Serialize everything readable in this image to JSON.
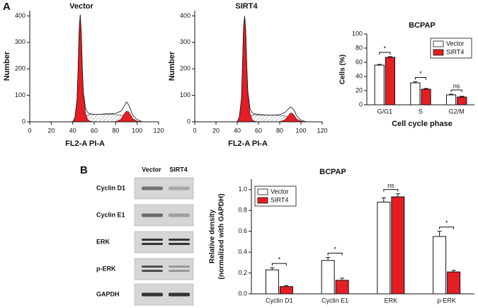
{
  "panels": [
    "A",
    "B"
  ],
  "chart_data": [
    {
      "type": "area",
      "title": "Vector",
      "x_label": "FL2-A PI-A",
      "y_label": "Number",
      "color": "#e31e24",
      "x": [
        40,
        42,
        44,
        45,
        46,
        47,
        48,
        49,
        50,
        52,
        54,
        56,
        60,
        65,
        70,
        75,
        80,
        85,
        88,
        90,
        92,
        94,
        96,
        100,
        105
      ],
      "values": [
        0,
        15,
        80,
        200,
        350,
        405,
        340,
        200,
        110,
        50,
        35,
        30,
        28,
        28,
        30,
        30,
        32,
        40,
        60,
        75,
        65,
        45,
        25,
        8,
        0
      ],
      "peak_values": [
        0,
        15,
        80,
        200,
        350,
        400,
        340,
        200,
        100,
        30,
        8,
        2,
        0,
        0,
        0,
        0,
        0,
        10,
        30,
        40,
        38,
        25,
        12,
        2,
        0
      ],
      "s_values": [
        0,
        0,
        0,
        2,
        4,
        6,
        8,
        9,
        10,
        20,
        25,
        28,
        28,
        28,
        28,
        28,
        27,
        25,
        20,
        15,
        10,
        5,
        2,
        0,
        0
      ],
      "xlim": [
        0,
        120
      ],
      "xticks": [
        0,
        20,
        40,
        60,
        80,
        100,
        120
      ],
      "ylim": [
        0,
        420
      ],
      "yticks": [
        0,
        100,
        200,
        300,
        400
      ]
    },
    {
      "type": "area",
      "title": "SIRT4",
      "x_label": "FL2-A PI-A",
      "y_label": "Number",
      "color": "#e31e24",
      "x": [
        40,
        42,
        44,
        45,
        46,
        47,
        48,
        49,
        50,
        52,
        54,
        56,
        60,
        65,
        70,
        75,
        80,
        85,
        88,
        90,
        92,
        94,
        96,
        100,
        105
      ],
      "values": [
        0,
        18,
        90,
        220,
        360,
        400,
        345,
        210,
        115,
        50,
        35,
        30,
        28,
        26,
        25,
        25,
        27,
        35,
        48,
        55,
        52,
        40,
        22,
        6,
        0
      ],
      "peak_values": [
        0,
        18,
        90,
        220,
        360,
        395,
        345,
        210,
        105,
        32,
        8,
        2,
        0,
        0,
        0,
        0,
        0,
        8,
        22,
        33,
        32,
        22,
        10,
        2,
        0
      ],
      "s_values": [
        0,
        0,
        0,
        2,
        4,
        6,
        8,
        9,
        10,
        20,
        25,
        27,
        26,
        25,
        25,
        25,
        24,
        22,
        18,
        13,
        9,
        5,
        2,
        0,
        0
      ],
      "xlim": [
        0,
        120
      ],
      "xticks": [
        0,
        20,
        40,
        60,
        80,
        100,
        120
      ],
      "ylim": [
        0,
        420
      ],
      "yticks": [
        0,
        100,
        200,
        300,
        400
      ]
    },
    {
      "type": "bar",
      "title": "BCPAP",
      "x_label": "Cell cycle phase",
      "y_label": [
        "Cells (%)"
      ],
      "categories": [
        "G/G1",
        "S",
        "G2/M"
      ],
      "series": [
        {
          "name": "Vector",
          "color": "#ffffff",
          "values": [
            56,
            31,
            14
          ],
          "errors": [
            1,
            1.5,
            1
          ]
        },
        {
          "name": "SIRT4",
          "color": "#e31e24",
          "values": [
            67,
            22,
            11
          ],
          "errors": [
            1,
            1,
            1
          ]
        }
      ],
      "annotations": [
        "*",
        "*",
        "ns"
      ],
      "ylim": [
        0,
        100
      ],
      "yticks": [
        0,
        20,
        40,
        60,
        80,
        100
      ],
      "legend": "upper-right"
    },
    {
      "type": "bar",
      "title": "BCPAP",
      "y_label": [
        "Relative density",
        "(normalized with GAPDH)"
      ],
      "categories": [
        "Cyclin D1",
        "Cyclin E1",
        "ERK",
        "p-ERK"
      ],
      "series": [
        {
          "name": "Vector",
          "color": "#ffffff",
          "values": [
            0.23,
            0.32,
            0.88,
            0.55
          ],
          "errors": [
            0.02,
            0.03,
            0.04,
            0.05
          ]
        },
        {
          "name": "SIRT4",
          "color": "#e31e24",
          "values": [
            0.07,
            0.13,
            0.93,
            0.21
          ],
          "errors": [
            0.01,
            0.02,
            0.03,
            0.015
          ]
        }
      ],
      "annotations": [
        "*",
        "*",
        "ns",
        "*"
      ],
      "ylim": [
        0,
        1.1
      ],
      "yticks": [
        {
          "value": 0,
          "label": "0.0"
        },
        0.2,
        0.4,
        0.6,
        0.8,
        {
          "value": 1,
          "label": "1.0"
        }
      ],
      "legend": "upper-left"
    }
  ],
  "blot": {
    "columns": [
      "Vector",
      "SIRT4"
    ],
    "rows": [
      "Cyclin D1",
      "Cyclin E1",
      "ERK",
      "p-ERK",
      "GAPDH"
    ]
  }
}
